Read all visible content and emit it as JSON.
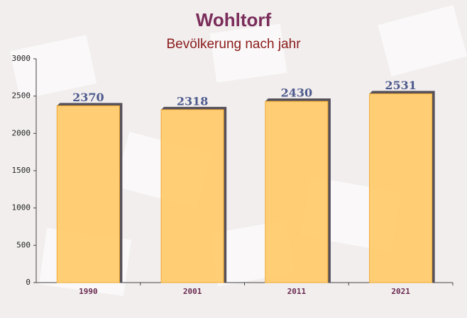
{
  "chart_data": {
    "type": "bar",
    "title": "Wohltorf",
    "subtitle": "Bevölkerung nach jahr",
    "categories": [
      "1990",
      "2001",
      "2011",
      "2021"
    ],
    "values": [
      2370,
      2318,
      2430,
      2531
    ],
    "color": "#ffc966",
    "ylim": [
      0,
      3000
    ],
    "yticks": [
      0,
      500,
      1000,
      1500,
      2000,
      2500,
      3000
    ],
    "grid": false
  }
}
